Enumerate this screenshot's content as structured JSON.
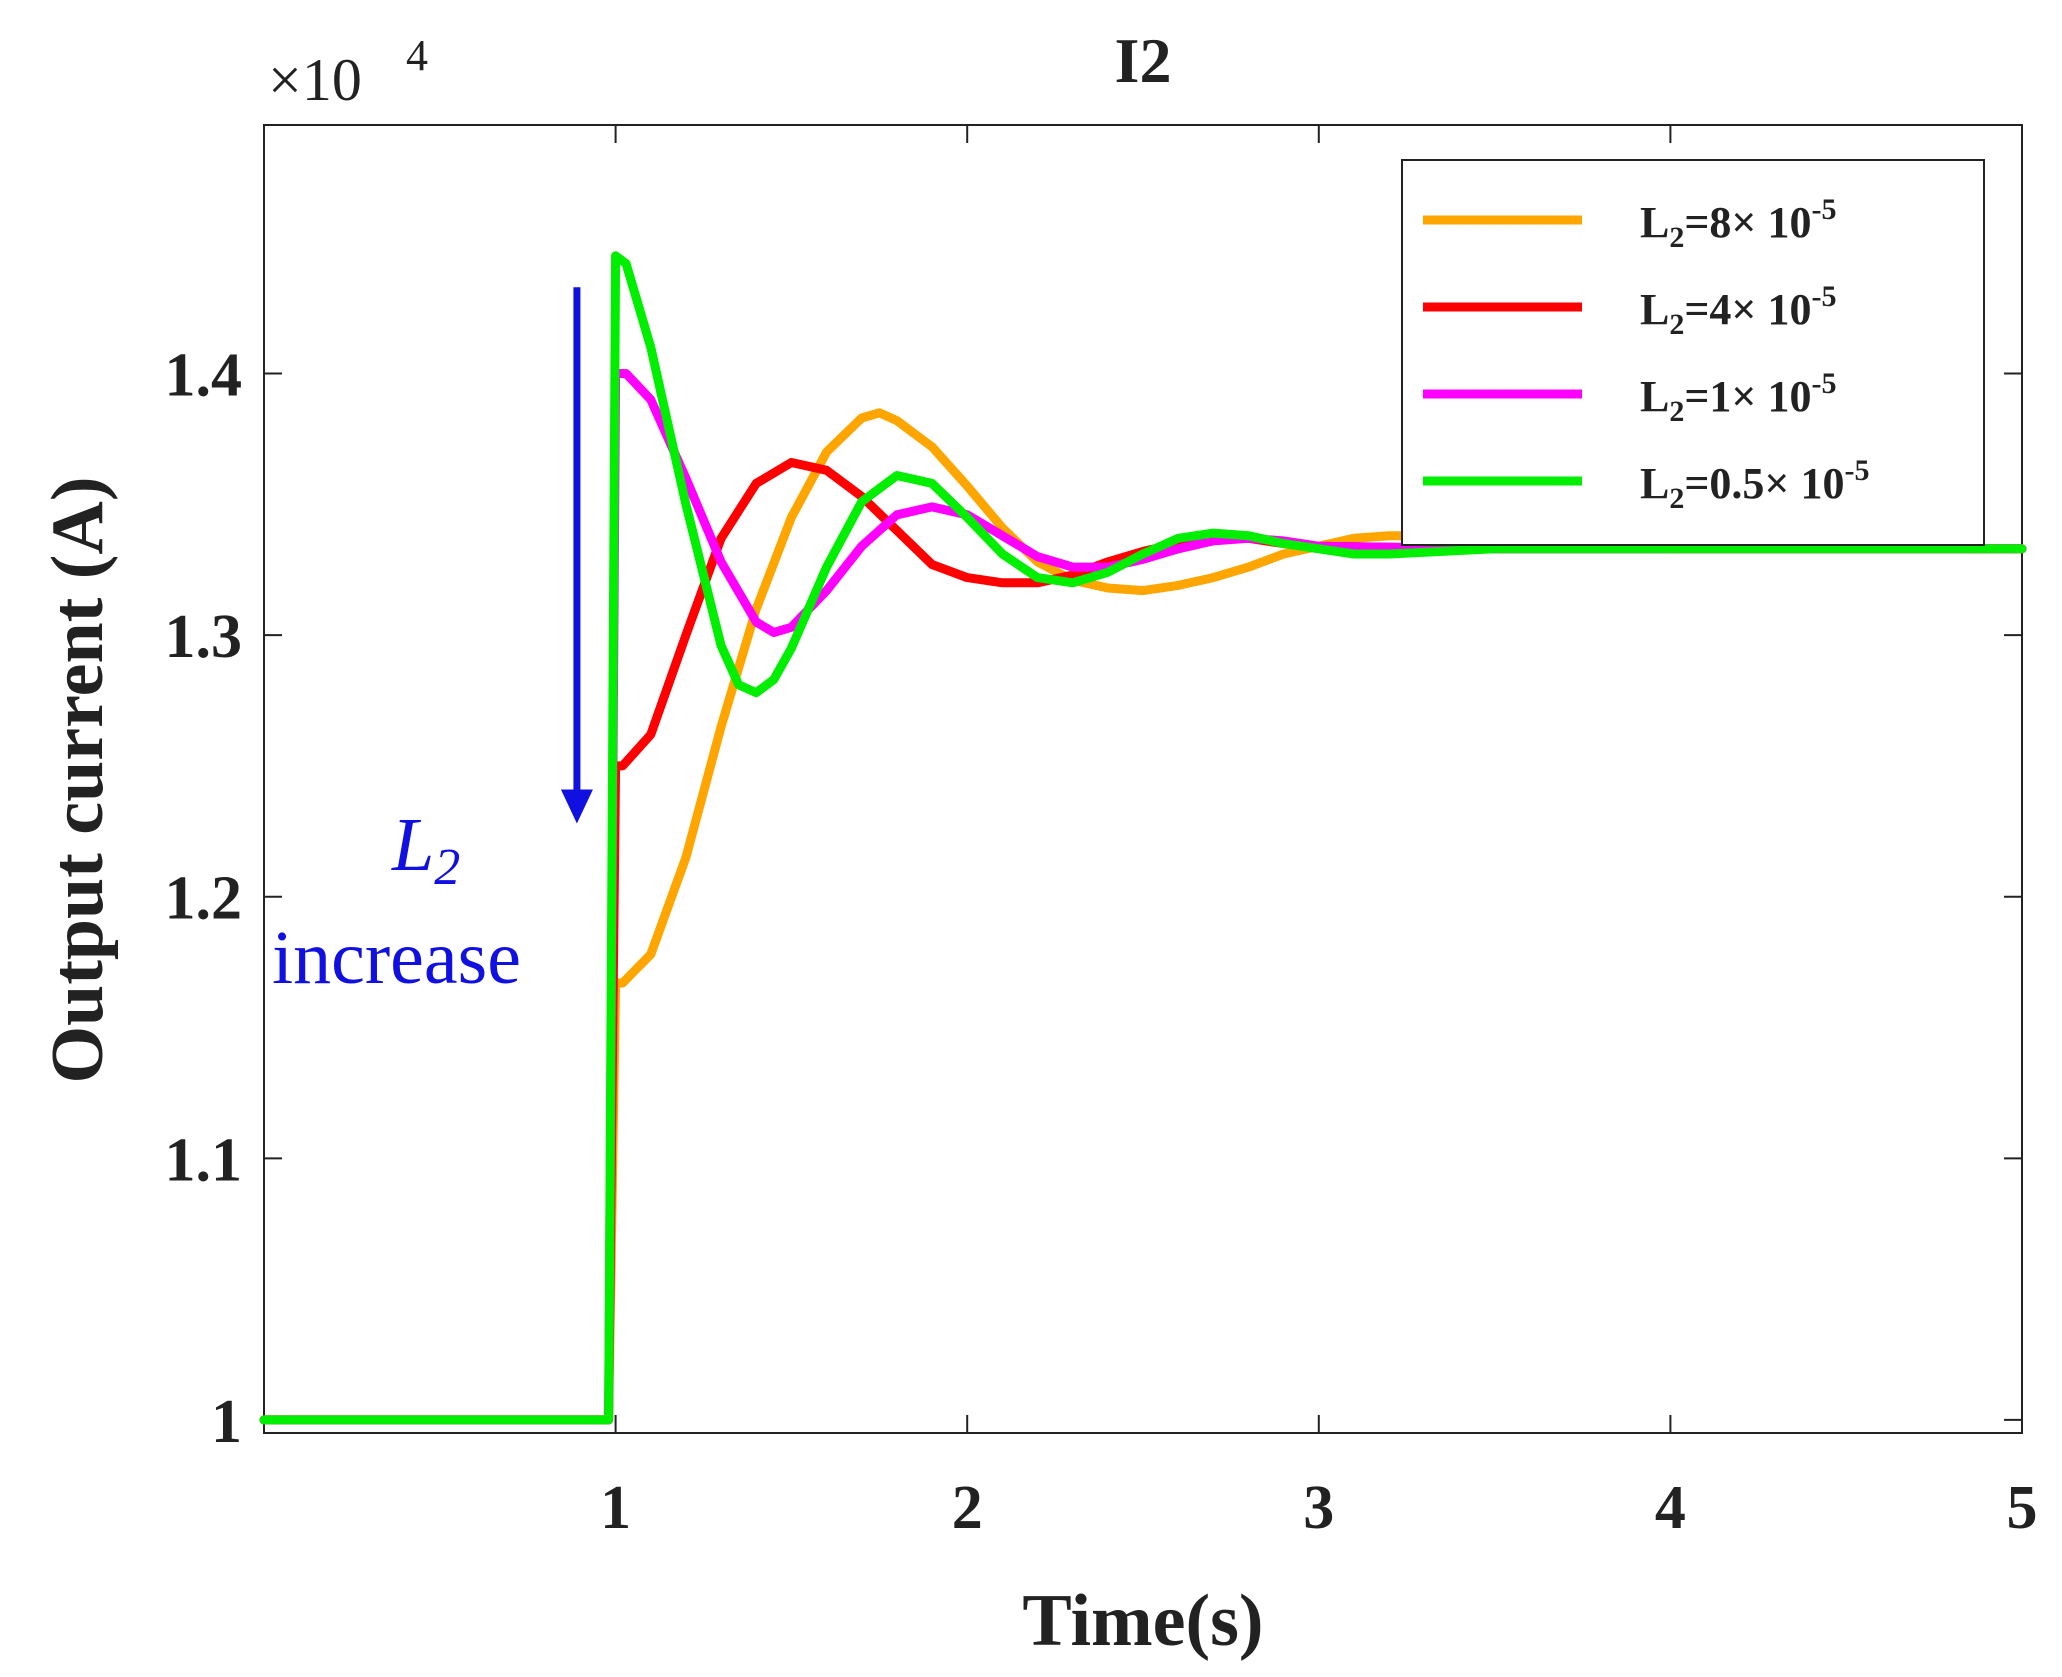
{
  "chart_data": {
    "type": "line",
    "title": "I2",
    "xlabel": "Time(s)",
    "ylabel": "Output current (A)",
    "y_exponent_label": "×10",
    "y_exponent_power": "4",
    "xlim": [
      0,
      5
    ],
    "ylim": [
      0.995,
      1.495
    ],
    "x_ticks": [
      1,
      2,
      3,
      4,
      5
    ],
    "x_tick_labels": [
      "1",
      "2",
      "3",
      "4",
      "5"
    ],
    "y_ticks": [
      1.0,
      1.1,
      1.2,
      1.3,
      1.4
    ],
    "y_tick_labels": [
      "1",
      "1.1",
      "1.2",
      "1.3",
      "1.4"
    ],
    "grid": false,
    "legend_position": "top-right",
    "series": [
      {
        "name": "L2=8×10-5",
        "legend_main": "L",
        "legend_sub": "2",
        "legend_rest": "=8× 10",
        "legend_sup": "-5",
        "color": "#FFA500",
        "x": [
          0,
          0.98,
          1.0,
          1.02,
          1.1,
          1.2,
          1.3,
          1.4,
          1.5,
          1.6,
          1.7,
          1.75,
          1.8,
          1.9,
          2.0,
          2.1,
          2.2,
          2.3,
          2.4,
          2.5,
          2.6,
          2.7,
          2.8,
          2.9,
          3.0,
          3.1,
          3.2,
          3.3,
          3.5,
          4.0,
          4.5,
          5.0
        ],
        "y": [
          1.0,
          1.0,
          1.167,
          1.167,
          1.178,
          1.215,
          1.265,
          1.31,
          1.345,
          1.37,
          1.383,
          1.385,
          1.382,
          1.372,
          1.357,
          1.341,
          1.328,
          1.321,
          1.318,
          1.317,
          1.319,
          1.322,
          1.326,
          1.331,
          1.334,
          1.337,
          1.338,
          1.338,
          1.336,
          1.333,
          1.333,
          1.333
        ]
      },
      {
        "name": "L2=4×10-5",
        "legend_main": "L",
        "legend_sub": "2",
        "legend_rest": "=4× 10",
        "legend_sup": "-5",
        "color": "#FF0000",
        "x": [
          0,
          0.98,
          1.0,
          1.02,
          1.1,
          1.2,
          1.3,
          1.4,
          1.5,
          1.6,
          1.7,
          1.8,
          1.9,
          2.0,
          2.1,
          2.2,
          2.3,
          2.4,
          2.5,
          2.6,
          2.7,
          2.8,
          2.9,
          3.0,
          3.5,
          4.0,
          5.0
        ],
        "y": [
          1.0,
          1.0,
          1.25,
          1.25,
          1.262,
          1.3,
          1.337,
          1.358,
          1.366,
          1.363,
          1.353,
          1.34,
          1.327,
          1.322,
          1.32,
          1.32,
          1.323,
          1.328,
          1.332,
          1.335,
          1.337,
          1.337,
          1.335,
          1.334,
          1.333,
          1.333,
          1.333
        ]
      },
      {
        "name": "L2=1×10-5",
        "legend_main": "L",
        "legend_sub": "2",
        "legend_rest": "=1× 10",
        "legend_sup": "-5",
        "color": "#FF00FF",
        "x": [
          0,
          0.98,
          1.0,
          1.03,
          1.1,
          1.2,
          1.3,
          1.4,
          1.45,
          1.5,
          1.6,
          1.7,
          1.8,
          1.9,
          2.0,
          2.1,
          2.2,
          2.3,
          2.4,
          2.5,
          2.6,
          2.7,
          2.8,
          2.9,
          3.0,
          3.5,
          4.0,
          5.0
        ],
        "y": [
          1.0,
          1.0,
          1.4,
          1.4,
          1.39,
          1.36,
          1.328,
          1.305,
          1.301,
          1.303,
          1.317,
          1.334,
          1.346,
          1.349,
          1.346,
          1.338,
          1.33,
          1.326,
          1.326,
          1.329,
          1.333,
          1.336,
          1.337,
          1.336,
          1.334,
          1.333,
          1.333,
          1.333
        ]
      },
      {
        "name": "L2=0.5×10-5",
        "legend_main": "L",
        "legend_sub": "2",
        "legend_rest": "=0.5× 10",
        "legend_sup": "-5",
        "color": "#00EE00",
        "x": [
          0,
          0.98,
          1.0,
          1.03,
          1.1,
          1.2,
          1.3,
          1.35,
          1.4,
          1.45,
          1.5,
          1.6,
          1.7,
          1.8,
          1.9,
          2.0,
          2.1,
          2.2,
          2.3,
          2.4,
          2.5,
          2.6,
          2.7,
          2.8,
          2.9,
          3.0,
          3.1,
          3.2,
          3.5,
          4.0,
          5.0
        ],
        "y": [
          1.0,
          1.0,
          1.445,
          1.442,
          1.41,
          1.35,
          1.296,
          1.281,
          1.278,
          1.283,
          1.295,
          1.326,
          1.351,
          1.361,
          1.358,
          1.345,
          1.331,
          1.322,
          1.32,
          1.324,
          1.331,
          1.337,
          1.339,
          1.338,
          1.335,
          1.333,
          1.331,
          1.331,
          1.333,
          1.333,
          1.333
        ]
      }
    ],
    "annotations": [
      {
        "text_main": "L",
        "text_sub": "2",
        "text_second_line": "increase",
        "arrow": "down",
        "arrow_from_y": 1.433,
        "arrow_to_y": 1.228,
        "arrow_x": 0.89
      }
    ]
  }
}
